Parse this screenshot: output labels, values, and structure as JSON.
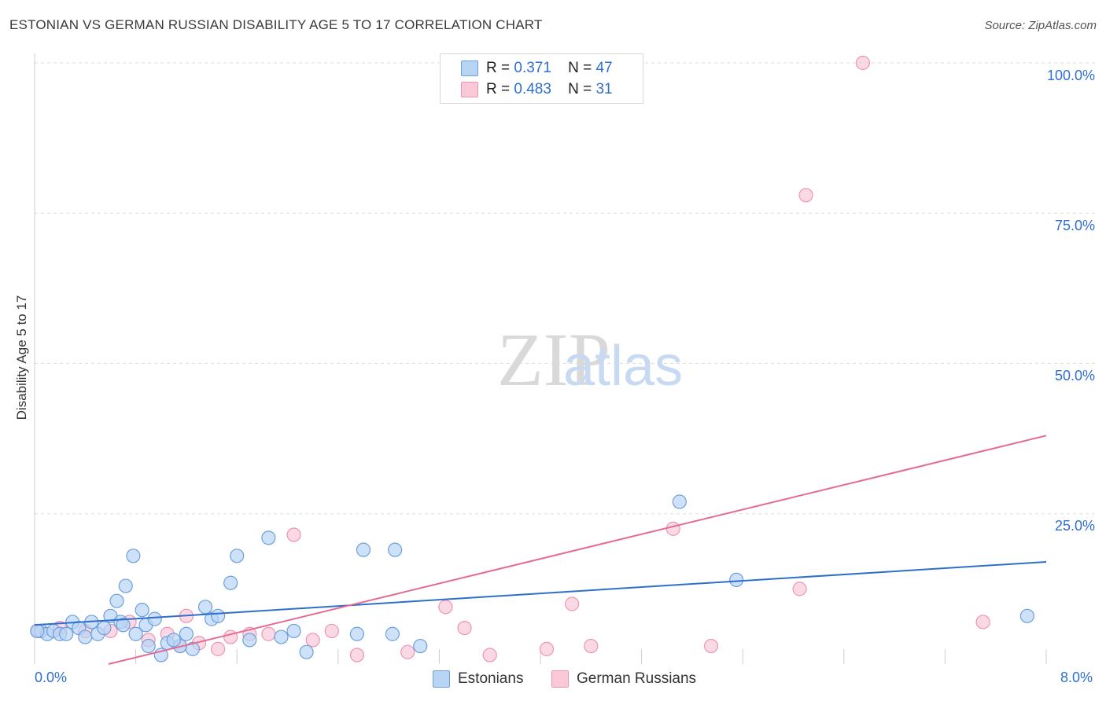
{
  "title": "ESTONIAN VS GERMAN RUSSIAN DISABILITY AGE 5 TO 17 CORRELATION CHART",
  "source": "Source: ZipAtlas.com",
  "watermark": {
    "zip": "ZIP",
    "atlas": "atlas"
  },
  "legend": {
    "rows": [
      {
        "r_label": "R =",
        "r_value": "0.371",
        "n_label": "N =",
        "n_value": "47"
      },
      {
        "r_label": "R =",
        "r_value": "0.483",
        "n_label": "N =",
        "n_value": "31"
      }
    ]
  },
  "colors": {
    "estonians_fill": "#b8d4f5",
    "estonians_stroke": "#6e9fdc",
    "estonians_line": "#2e6fce",
    "german_russians_fill": "#f9c9d8",
    "german_russians_stroke": "#ec95b2",
    "german_russians_line": "#e46b94",
    "grid": "#dedede",
    "tick_text": "#2f6fd1"
  },
  "chart_data": {
    "type": "scatter",
    "title": "ESTONIAN VS GERMAN RUSSIAN DISABILITY AGE 5 TO 17 CORRELATION CHART",
    "xlabel": "",
    "ylabel": "Disability Age 5 to 17",
    "xlim": [
      0,
      8
    ],
    "ylim": [
      0,
      100
    ],
    "x_tick_labels": [
      "0.0%",
      "8.0%"
    ],
    "y_ticks": [
      25,
      50,
      75,
      100
    ],
    "y_tick_labels": [
      "25.0%",
      "50.0%",
      "75.0%",
      "100.0%"
    ],
    "grid": true,
    "legend_position": "top-center",
    "series": [
      {
        "name": "Estonians",
        "r": 0.371,
        "n": 47,
        "trend": {
          "x": [
            0,
            8
          ],
          "y": [
            6.5,
            17
          ]
        },
        "points": [
          [
            0.05,
            5.5
          ],
          [
            0.1,
            5.0
          ],
          [
            0.15,
            5.5
          ],
          [
            0.2,
            5.0
          ],
          [
            0.25,
            5.0
          ],
          [
            0.3,
            7.0
          ],
          [
            0.35,
            6.0
          ],
          [
            0.4,
            4.5
          ],
          [
            0.45,
            7.0
          ],
          [
            0.5,
            5.0
          ],
          [
            0.55,
            6.0
          ],
          [
            0.6,
            8.0
          ],
          [
            0.65,
            10.5
          ],
          [
            0.68,
            7.0
          ],
          [
            0.72,
            13.0
          ],
          [
            0.78,
            18.0
          ],
          [
            0.8,
            5.0
          ],
          [
            0.85,
            9.0
          ],
          [
            0.88,
            6.5
          ],
          [
            0.9,
            3.0
          ],
          [
            0.95,
            7.5
          ],
          [
            1.0,
            1.5
          ],
          [
            1.05,
            3.5
          ],
          [
            1.15,
            3.0
          ],
          [
            1.2,
            5.0
          ],
          [
            1.25,
            2.5
          ],
          [
            1.35,
            9.5
          ],
          [
            1.4,
            7.5
          ],
          [
            1.45,
            8.0
          ],
          [
            1.55,
            13.5
          ],
          [
            1.6,
            18.0
          ],
          [
            1.7,
            4.0
          ],
          [
            1.85,
            21.0
          ],
          [
            1.95,
            4.5
          ],
          [
            2.05,
            5.5
          ],
          [
            2.15,
            2.0
          ],
          [
            2.55,
            5.0
          ],
          [
            2.6,
            19.0
          ],
          [
            2.83,
            5.0
          ],
          [
            2.85,
            19.0
          ],
          [
            3.05,
            3.0
          ],
          [
            5.1,
            27.0
          ],
          [
            5.55,
            14.0
          ],
          [
            7.85,
            8.0
          ],
          [
            0.02,
            5.5
          ],
          [
            0.7,
            6.5
          ],
          [
            1.1,
            4.0
          ]
        ]
      },
      {
        "name": "German Russians",
        "r": 0.483,
        "n": 31,
        "trend": {
          "x": [
            0,
            8
          ],
          "y": [
            -3.0,
            38.0
          ]
        },
        "points": [
          [
            0.03,
            5.5
          ],
          [
            0.2,
            6.0
          ],
          [
            0.4,
            5.5
          ],
          [
            0.6,
            5.5
          ],
          [
            0.75,
            7.0
          ],
          [
            0.9,
            4.0
          ],
          [
            1.05,
            5.0
          ],
          [
            1.15,
            3.0
          ],
          [
            1.2,
            8.0
          ],
          [
            1.3,
            3.5
          ],
          [
            1.45,
            2.5
          ],
          [
            1.55,
            4.5
          ],
          [
            1.7,
            5.0
          ],
          [
            1.85,
            5.0
          ],
          [
            2.05,
            21.5
          ],
          [
            2.2,
            4.0
          ],
          [
            2.35,
            5.5
          ],
          [
            2.55,
            1.5
          ],
          [
            2.95,
            2.0
          ],
          [
            3.25,
            9.5
          ],
          [
            3.4,
            6.0
          ],
          [
            3.6,
            1.5
          ],
          [
            4.05,
            2.5
          ],
          [
            4.25,
            10.0
          ],
          [
            4.4,
            3.0
          ],
          [
            5.05,
            22.5
          ],
          [
            5.35,
            3.0
          ],
          [
            6.05,
            12.5
          ],
          [
            6.1,
            78.0
          ],
          [
            6.55,
            100.0
          ],
          [
            7.5,
            7.0
          ]
        ]
      }
    ]
  },
  "bottom_legend": {
    "items": [
      "Estonians",
      "German Russians"
    ]
  }
}
